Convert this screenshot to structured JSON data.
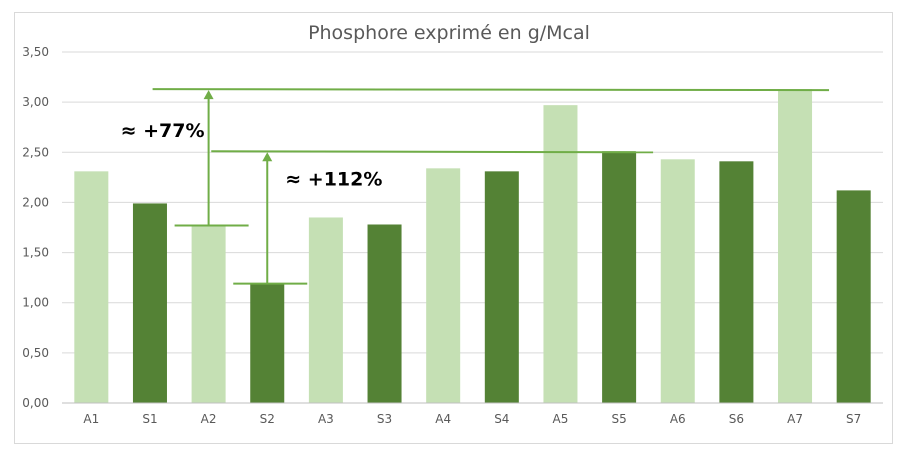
{
  "chart_data": {
    "type": "bar",
    "title": "Phosphore exprimé en g/Mcal",
    "categories": [
      "A1",
      "S1",
      "A2",
      "S2",
      "A3",
      "S3",
      "A4",
      "S4",
      "A5",
      "S5",
      "A6",
      "S6",
      "A7",
      "S7"
    ],
    "values": [
      2.31,
      1.99,
      1.77,
      1.19,
      1.85,
      1.78,
      2.34,
      2.31,
      2.97,
      2.51,
      2.43,
      2.41,
      3.13,
      2.12
    ],
    "bar_colors": [
      "#c5e0b4",
      "#548235",
      "#c5e0b4",
      "#548235",
      "#c5e0b4",
      "#548235",
      "#c5e0b4",
      "#548235",
      "#c5e0b4",
      "#548235",
      "#c5e0b4",
      "#548235",
      "#c5e0b4",
      "#548235"
    ],
    "ylim": [
      0,
      3.5
    ],
    "yticks": [
      "0,00",
      "0,50",
      "1,00",
      "1,50",
      "2,00",
      "2,50",
      "3,00",
      "3,50"
    ],
    "ytick_values": [
      0,
      0.5,
      1.0,
      1.5,
      2.0,
      2.5,
      3.0,
      3.5
    ],
    "grid": true,
    "annotation_color": "#70ad47",
    "annotations": [
      {
        "label": "≈ +77%",
        "from_category": "A2",
        "from_value": 1.77,
        "to_category": "A7",
        "to_value": 3.13
      },
      {
        "label": "≈ +112%",
        "from_category": "S2",
        "from_value": 1.19,
        "to_category": "S5",
        "to_value": 2.51
      }
    ]
  }
}
